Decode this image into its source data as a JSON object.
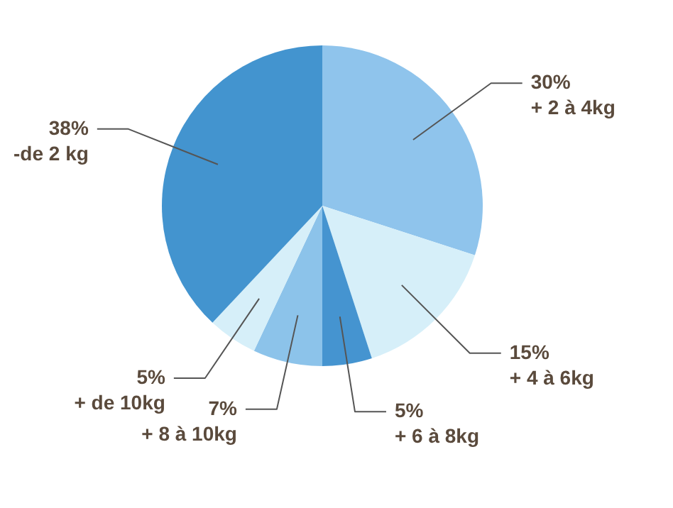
{
  "chart_data": {
    "type": "pie",
    "categories": [
      "+ 2 à 4kg",
      "+ 4 à 6kg",
      "+ 6 à 8kg",
      "+ 8 à 10kg",
      "+ de 10kg",
      "-de 2 kg"
    ],
    "values": [
      30,
      15,
      5,
      7,
      5,
      38
    ],
    "value_labels": [
      "30%",
      "15%",
      "5%",
      "7%",
      "5%",
      "38%"
    ],
    "colors": [
      "#8fc4ec",
      "#d6eff9",
      "#4594d0",
      "#8cc3ea",
      "#d6eff9",
      "#4394cf"
    ]
  }
}
